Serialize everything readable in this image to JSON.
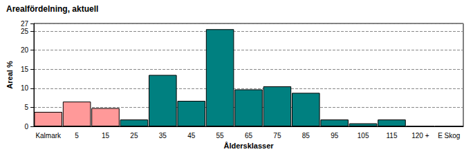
{
  "chart_data": {
    "type": "bar",
    "title": "Arealfördelning, aktuell",
    "x_label": "Åldersklasser",
    "y_label": "Areal %",
    "categories": [
      "Kalmark",
      "5",
      "15",
      "25",
      "35",
      "45",
      "55",
      "65",
      "75",
      "85",
      "95",
      "105",
      "115",
      "120 +",
      "E Skog"
    ],
    "values": [
      3.8,
      6.5,
      4.8,
      1.8,
      13.5,
      6.7,
      25.5,
      9.7,
      10.5,
      8.8,
      1.8,
      0.8,
      1.8,
      0,
      0
    ],
    "colors": [
      "#ff9999",
      "#ff9999",
      "#ff9999",
      "#008080",
      "#008080",
      "#008080",
      "#008080",
      "#008080",
      "#008080",
      "#008080",
      "#008080",
      "#008080",
      "#008080",
      "#008080",
      "#008080"
    ],
    "ylim": [
      0,
      27
    ],
    "yticks": [
      0,
      5,
      10,
      15,
      20,
      25
    ],
    "grid": true
  }
}
